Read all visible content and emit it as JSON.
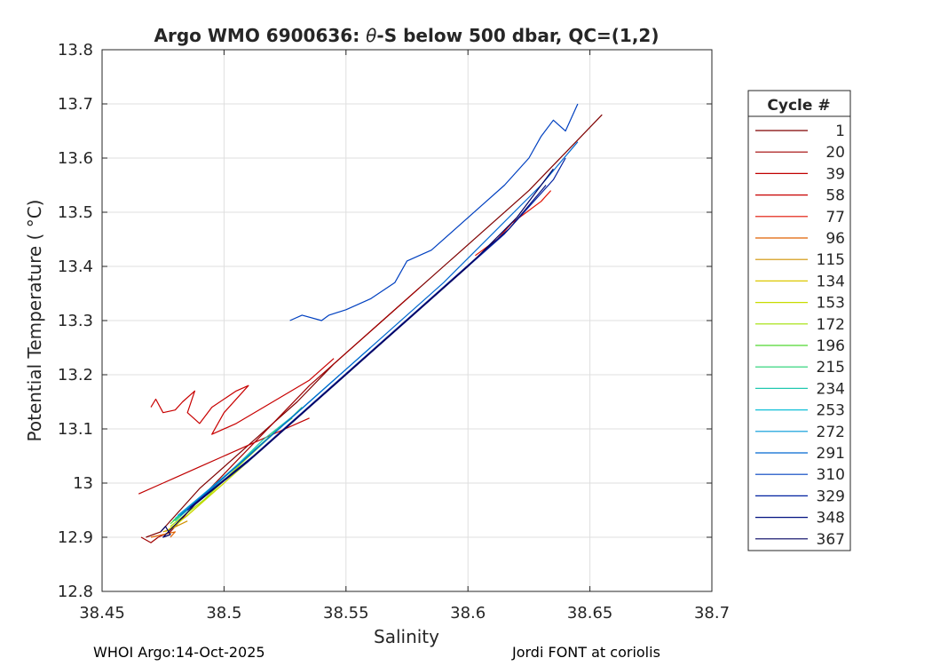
{
  "footer": {
    "left": "WHOI Argo:14-Oct-2025",
    "right": "Jordi FONT at coriolis"
  },
  "chart_data": {
    "type": "line",
    "title_parts": [
      "Argo WMO 6900636: ",
      "θ",
      "-S below 500 dbar,  QC=(1,2)"
    ],
    "xlabel": "Salinity",
    "ylabel": "Potential Temperature ( °C)",
    "xlim": [
      38.45,
      38.7
    ],
    "ylim": [
      12.8,
      13.8
    ],
    "xticks": [
      38.45,
      38.5,
      38.55,
      38.6,
      38.65,
      38.7
    ],
    "xtick_labels": [
      "38.45",
      "38.5",
      "38.55",
      "38.6",
      "38.65",
      "38.7"
    ],
    "yticks": [
      12.8,
      12.9,
      13.0,
      13.1,
      13.2,
      13.3,
      13.4,
      13.5,
      13.6,
      13.7,
      13.8
    ],
    "ytick_labels": [
      "12.8",
      "12.9",
      "13",
      "13.1",
      "13.2",
      "13.3",
      "13.4",
      "13.5",
      "13.6",
      "13.7",
      "13.8"
    ],
    "grid": true,
    "legend_title": "Cycle #",
    "legend_position": "outside-right",
    "series": [
      {
        "name": "1",
        "color": "#7f0000",
        "points": [
          [
            38.468,
            12.9
          ],
          [
            38.474,
            12.91
          ],
          [
            38.49,
            12.99
          ],
          [
            38.51,
            13.07
          ],
          [
            38.53,
            13.15
          ],
          [
            38.545,
            13.22
          ],
          [
            38.565,
            13.3
          ],
          [
            38.585,
            13.38
          ],
          [
            38.605,
            13.46
          ],
          [
            38.625,
            13.54
          ],
          [
            38.64,
            13.61
          ],
          [
            38.655,
            13.68
          ]
        ]
      },
      {
        "name": "20",
        "color": "#a00000",
        "points": [
          [
            38.466,
            12.9
          ],
          [
            38.47,
            12.89
          ],
          [
            38.473,
            12.9
          ],
          [
            38.478,
            12.91
          ],
          [
            38.49,
            12.97
          ],
          [
            38.505,
            13.04
          ],
          [
            38.52,
            13.11
          ],
          [
            38.535,
            13.18
          ],
          [
            38.55,
            13.24
          ],
          [
            38.565,
            13.3
          ],
          [
            38.58,
            13.36
          ]
        ]
      },
      {
        "name": "39",
        "color": "#c00000",
        "points": [
          [
            38.465,
            12.98
          ],
          [
            38.475,
            13.0
          ],
          [
            38.48,
            13.01
          ],
          [
            38.49,
            13.03
          ],
          [
            38.5,
            13.05
          ],
          [
            38.505,
            13.06
          ],
          [
            38.515,
            13.08
          ],
          [
            38.525,
            13.1
          ],
          [
            38.53,
            13.11
          ],
          [
            38.535,
            13.12
          ]
        ]
      },
      {
        "name": "58",
        "color": "#c80000",
        "points": [
          [
            38.47,
            13.14
          ],
          [
            38.472,
            13.155
          ],
          [
            38.475,
            13.13
          ],
          [
            38.48,
            13.135
          ],
          [
            38.483,
            13.15
          ],
          [
            38.488,
            13.17
          ],
          [
            38.485,
            13.13
          ],
          [
            38.49,
            13.11
          ],
          [
            38.495,
            13.14
          ],
          [
            38.505,
            13.17
          ],
          [
            38.51,
            13.18
          ],
          [
            38.5,
            13.13
          ],
          [
            38.495,
            13.09
          ],
          [
            38.505,
            13.11
          ],
          [
            38.52,
            13.15
          ],
          [
            38.535,
            13.19
          ],
          [
            38.545,
            13.23
          ]
        ]
      },
      {
        "name": "77",
        "color": "#e01000",
        "points": [
          [
            38.603,
            13.42
          ],
          [
            38.606,
            13.43
          ],
          [
            38.612,
            13.45
          ],
          [
            38.618,
            13.48
          ],
          [
            38.624,
            13.5
          ],
          [
            38.63,
            13.52
          ],
          [
            38.634,
            13.54
          ]
        ]
      },
      {
        "name": "96",
        "color": "#e06000",
        "points": [
          [
            38.47,
            12.9
          ],
          [
            38.475,
            12.905
          ],
          [
            38.48,
            12.91
          ],
          [
            38.478,
            12.9
          ]
        ]
      },
      {
        "name": "115",
        "color": "#d09000",
        "points": [
          [
            38.475,
            12.91
          ],
          [
            38.478,
            12.915
          ],
          [
            38.485,
            12.93
          ]
        ]
      },
      {
        "name": "134",
        "color": "#dcc800",
        "points": [
          [
            38.476,
            12.91
          ],
          [
            38.485,
            12.94
          ],
          [
            38.5,
            13.0
          ]
        ]
      },
      {
        "name": "153",
        "color": "#c8dc00",
        "points": [
          [
            38.477,
            12.91
          ],
          [
            38.49,
            12.96
          ],
          [
            38.505,
            13.02
          ],
          [
            38.515,
            13.06
          ]
        ]
      },
      {
        "name": "172",
        "color": "#a0e000",
        "points": [
          [
            38.478,
            12.92
          ],
          [
            38.492,
            12.97
          ],
          [
            38.508,
            13.04
          ],
          [
            38.52,
            13.09
          ]
        ]
      },
      {
        "name": "196",
        "color": "#50d830",
        "points": [
          [
            38.478,
            12.925
          ],
          [
            38.495,
            12.99
          ],
          [
            38.51,
            13.05
          ],
          [
            38.522,
            13.1
          ],
          [
            38.528,
            13.12
          ]
        ]
      },
      {
        "name": "215",
        "color": "#20d070",
        "points": [
          [
            38.479,
            12.93
          ],
          [
            38.497,
            13.0
          ],
          [
            38.512,
            13.06
          ],
          [
            38.525,
            13.11
          ],
          [
            38.532,
            13.14
          ]
        ]
      },
      {
        "name": "234",
        "color": "#20c8b0",
        "points": [
          [
            38.48,
            12.93
          ],
          [
            38.5,
            13.01
          ],
          [
            38.516,
            13.08
          ],
          [
            38.53,
            13.13
          ],
          [
            38.54,
            13.17
          ]
        ]
      },
      {
        "name": "253",
        "color": "#10c0d8",
        "points": [
          [
            38.48,
            12.935
          ],
          [
            38.502,
            13.02
          ],
          [
            38.52,
            13.09
          ],
          [
            38.535,
            13.15
          ],
          [
            38.545,
            13.19
          ]
        ]
      },
      {
        "name": "272",
        "color": "#0098d8",
        "points": [
          [
            38.481,
            12.94
          ],
          [
            38.505,
            13.03
          ],
          [
            38.525,
            13.11
          ],
          [
            38.54,
            13.17
          ],
          [
            38.55,
            13.21
          ],
          [
            38.56,
            13.25
          ]
        ]
      },
      {
        "name": "291",
        "color": "#0068d0",
        "points": [
          [
            38.482,
            12.94
          ],
          [
            38.51,
            13.05
          ],
          [
            38.53,
            13.13
          ],
          [
            38.55,
            13.21
          ],
          [
            38.57,
            13.29
          ],
          [
            38.59,
            13.37
          ],
          [
            38.61,
            13.46
          ],
          [
            38.63,
            13.55
          ],
          [
            38.645,
            13.63
          ]
        ]
      },
      {
        "name": "310",
        "color": "#0040c0",
        "points": [
          [
            38.527,
            13.3
          ],
          [
            38.532,
            13.31
          ],
          [
            38.54,
            13.3
          ],
          [
            38.543,
            13.31
          ],
          [
            38.55,
            13.32
          ],
          [
            38.56,
            13.34
          ],
          [
            38.57,
            13.37
          ],
          [
            38.575,
            13.41
          ],
          [
            38.585,
            13.43
          ],
          [
            38.595,
            13.47
          ],
          [
            38.605,
            13.51
          ],
          [
            38.615,
            13.55
          ],
          [
            38.625,
            13.6
          ],
          [
            38.63,
            13.64
          ],
          [
            38.635,
            13.67
          ],
          [
            38.64,
            13.65
          ],
          [
            38.645,
            13.7
          ]
        ]
      },
      {
        "name": "329",
        "color": "#0020a0",
        "points": [
          [
            38.485,
            12.95
          ],
          [
            38.51,
            13.04
          ],
          [
            38.535,
            13.14
          ],
          [
            38.555,
            13.22
          ],
          [
            38.575,
            13.3
          ],
          [
            38.595,
            13.38
          ],
          [
            38.615,
            13.46
          ],
          [
            38.635,
            13.56
          ],
          [
            38.64,
            13.6
          ]
        ]
      },
      {
        "name": "348",
        "color": "#001080",
        "points": [
          [
            38.486,
            12.955
          ],
          [
            38.512,
            13.05
          ],
          [
            38.537,
            13.15
          ],
          [
            38.557,
            13.23
          ],
          [
            38.577,
            13.31
          ],
          [
            38.597,
            13.39
          ],
          [
            38.617,
            13.47
          ],
          [
            38.632,
            13.55
          ]
        ]
      },
      {
        "name": "367",
        "color": "#000060",
        "points": [
          [
            38.474,
            12.91
          ],
          [
            38.476,
            12.92
          ],
          [
            38.478,
            12.905
          ],
          [
            38.475,
            12.9
          ],
          [
            38.488,
            12.96
          ],
          [
            38.515,
            13.06
          ],
          [
            38.54,
            13.16
          ],
          [
            38.56,
            13.24
          ],
          [
            38.58,
            13.32
          ],
          [
            38.6,
            13.4
          ],
          [
            38.62,
            13.49
          ],
          [
            38.635,
            13.58
          ]
        ]
      }
    ]
  }
}
